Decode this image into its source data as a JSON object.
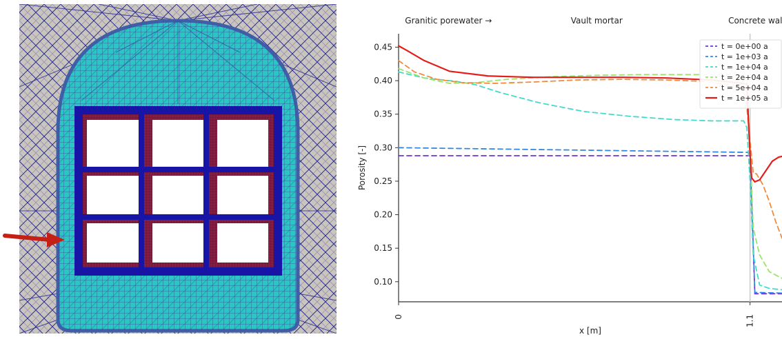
{
  "colors": {
    "mesh_background": "#c9c4bd",
    "mesh_line": "#2c2e8f",
    "mesh_fill": "#29c7c1",
    "mesh_border": "#3f5fa7",
    "frame_blue": "#1815a6",
    "frame_red": "#8a1d3e",
    "arrow": "#c61f16"
  },
  "figure": {
    "arrow_icon": "arrow-right-icon",
    "mesh_icon": "tunnel-mesh-icon"
  },
  "chart_data": {
    "type": "line",
    "xlabel": "x [m]",
    "ylabel": "Porosity [-]",
    "xlim": [
      0,
      1.2
    ],
    "ylim": [
      0.07,
      0.47
    ],
    "x_ticks": [
      0,
      1.1
    ],
    "x_tick_labels": [
      "0",
      "1.1"
    ],
    "y_ticks": [
      0.1,
      0.15,
      0.2,
      0.25,
      0.3,
      0.35,
      0.4,
      0.45
    ],
    "y_tick_labels": [
      "0.10",
      "0.15",
      "0.20",
      "0.25",
      "0.30",
      "0.35",
      "0.40",
      "0.45"
    ],
    "top_labels": [
      {
        "text": "Granitic porewater →",
        "x": 0.02
      },
      {
        "text": "Vault mortar",
        "x": 0.62
      },
      {
        "text": "Concrete wall",
        "x": 1.12
      }
    ],
    "legend_position": "top-right",
    "series": [
      {
        "name": "t = 0e+00 a",
        "color": "#6f31d8",
        "dash": "7,5",
        "x": [
          0,
          1.09,
          1.1,
          1.115,
          1.2
        ],
        "y": [
          0.288,
          0.288,
          0.288,
          0.082,
          0.082
        ]
      },
      {
        "name": "t = 1e+03 a",
        "color": "#3188e4",
        "dash": "7,5",
        "x": [
          0,
          1.09,
          1.1,
          1.115,
          1.2
        ],
        "y": [
          0.3,
          0.293,
          0.292,
          0.084,
          0.083
        ]
      },
      {
        "name": "t = 1e+04 a",
        "color": "#43d9cb",
        "dash": "7,5",
        "x": [
          0,
          0.08,
          0.18,
          0.24,
          0.32,
          0.44,
          0.58,
          0.72,
          0.86,
          0.98,
          1.08,
          1.09,
          1.1,
          1.11,
          1.13,
          1.16,
          1.2
        ],
        "y": [
          0.413,
          0.404,
          0.399,
          0.394,
          0.382,
          0.367,
          0.354,
          0.347,
          0.342,
          0.34,
          0.34,
          0.33,
          0.25,
          0.14,
          0.095,
          0.09,
          0.088
        ]
      },
      {
        "name": "t = 2e+04 a",
        "color": "#9be36c",
        "dash": "7,5",
        "x": [
          0,
          0.08,
          0.16,
          0.24,
          0.34,
          0.48,
          0.62,
          0.76,
          0.9,
          1.02,
          1.08,
          1.09,
          1.1,
          1.11,
          1.13,
          1.16,
          1.2
        ],
        "y": [
          0.418,
          0.404,
          0.396,
          0.397,
          0.402,
          0.406,
          0.408,
          0.409,
          0.409,
          0.409,
          0.409,
          0.4,
          0.3,
          0.18,
          0.14,
          0.115,
          0.105
        ]
      },
      {
        "name": "t = 5e+04 a",
        "color": "#f18a3c",
        "dash": "7,5",
        "x": [
          0,
          0.05,
          0.12,
          0.2,
          0.3,
          0.42,
          0.56,
          0.7,
          0.84,
          0.96,
          1.06,
          1.08,
          1.09,
          1.1,
          1.11,
          1.12,
          1.14,
          1.16,
          1.18,
          1.2
        ],
        "y": [
          0.43,
          0.413,
          0.402,
          0.397,
          0.396,
          0.398,
          0.401,
          0.402,
          0.401,
          0.399,
          0.392,
          0.388,
          0.36,
          0.31,
          0.262,
          0.261,
          0.245,
          0.22,
          0.19,
          0.165
        ]
      },
      {
        "name": "t = 1e+05 a",
        "color": "#e31d17",
        "dash": "",
        "x": [
          0,
          0.03,
          0.08,
          0.16,
          0.28,
          0.42,
          0.56,
          0.7,
          0.84,
          0.98,
          1.06,
          1.09,
          1.095,
          1.1,
          1.105,
          1.115,
          1.13,
          1.15,
          1.17,
          1.19,
          1.2
        ],
        "y": [
          0.452,
          0.444,
          0.43,
          0.414,
          0.407,
          0.405,
          0.405,
          0.405,
          0.404,
          0.401,
          0.397,
          0.395,
          0.34,
          0.29,
          0.255,
          0.249,
          0.252,
          0.266,
          0.28,
          0.286,
          0.287
        ]
      }
    ]
  }
}
